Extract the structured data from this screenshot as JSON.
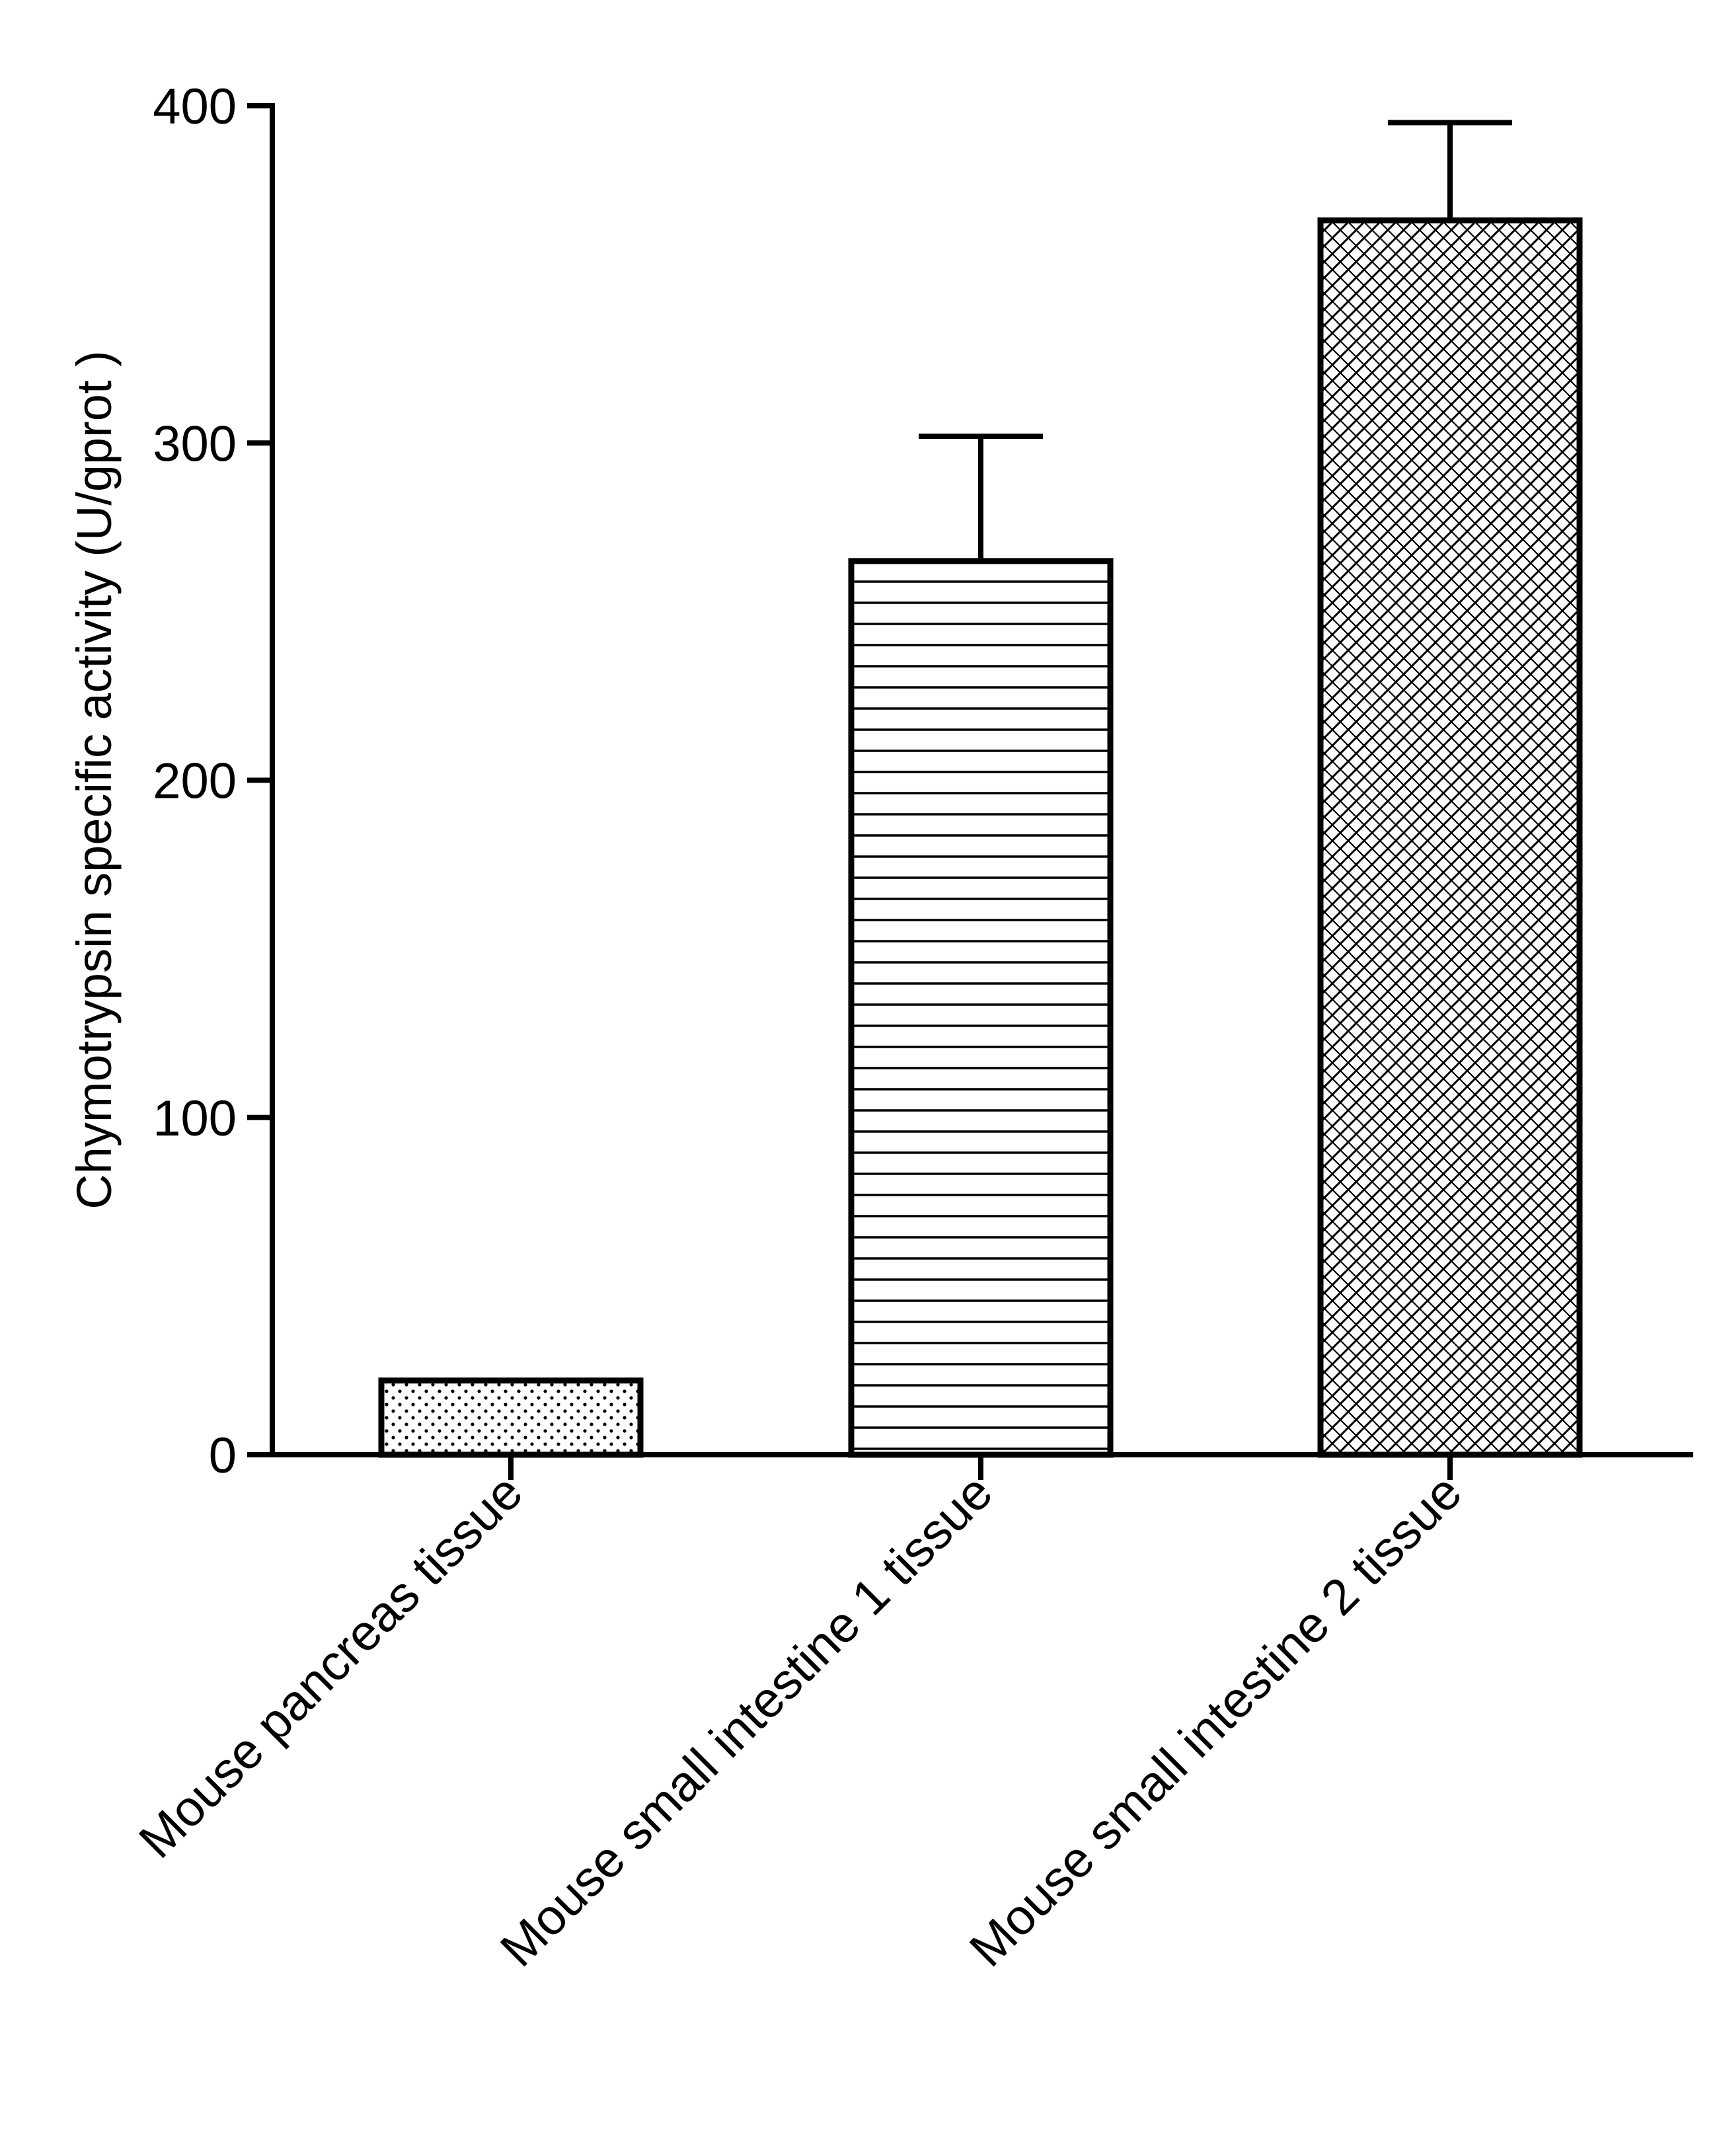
{
  "chart_data": {
    "type": "bar",
    "title": "",
    "xlabel": "",
    "ylabel": "Chymotrypsin specific activity (U/gprot )",
    "ylim": [
      0,
      400
    ],
    "yticks": [
      0,
      100,
      200,
      300,
      400
    ],
    "ytick_labels": [
      "0",
      "100",
      "200",
      "300",
      "400"
    ],
    "categories": [
      "Mouse pancreas tissue",
      "Mouse small intestine 1 tissue",
      "Mouse small intestine 2 tissue"
    ],
    "values": [
      22,
      265,
      366
    ],
    "error_upper": [
      0,
      37,
      29
    ],
    "bar_patterns": [
      "dots",
      "horizontal-lines",
      "crosshatch"
    ],
    "grid": false,
    "legend": "none"
  }
}
